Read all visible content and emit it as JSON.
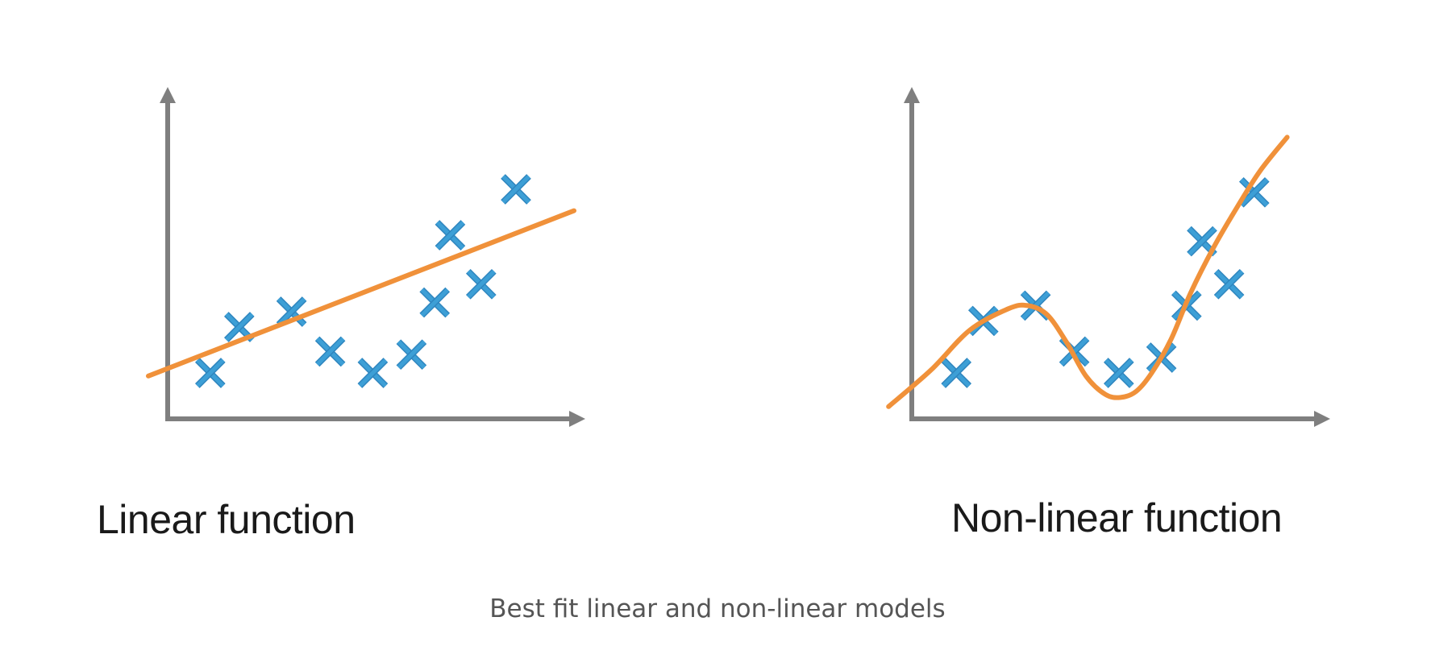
{
  "caption": "Best fit linear and non-linear models",
  "colors": {
    "axis": "#7f7f7f",
    "fit": "#f0913a",
    "marker": "#3d9fd6",
    "marker_dark": "#2f86bf"
  },
  "chart_data": [
    {
      "type": "scatter",
      "title": "Linear function",
      "xlim": [
        0,
        100
      ],
      "ylim": [
        0,
        100
      ],
      "grid": false,
      "points": [
        {
          "x": 11,
          "y": 15
        },
        {
          "x": 18.5,
          "y": 30
        },
        {
          "x": 32,
          "y": 35
        },
        {
          "x": 42,
          "y": 22
        },
        {
          "x": 53,
          "y": 15
        },
        {
          "x": 63,
          "y": 21
        },
        {
          "x": 69,
          "y": 38
        },
        {
          "x": 73,
          "y": 60
        },
        {
          "x": 81,
          "y": 44
        },
        {
          "x": 90,
          "y": 75
        }
      ],
      "fit": {
        "kind": "linear",
        "x": [
          -5,
          105
        ],
        "y": [
          14,
          68
        ]
      }
    },
    {
      "type": "scatter",
      "title": "Non-linear function",
      "xlim": [
        0,
        100
      ],
      "ylim": [
        0,
        100
      ],
      "grid": false,
      "points": [
        {
          "x": 11.5,
          "y": 15
        },
        {
          "x": 18.5,
          "y": 32
        },
        {
          "x": 32,
          "y": 37
        },
        {
          "x": 42,
          "y": 22
        },
        {
          "x": 53.5,
          "y": 15
        },
        {
          "x": 64.5,
          "y": 20
        },
        {
          "x": 71,
          "y": 37
        },
        {
          "x": 75,
          "y": 58
        },
        {
          "x": 82,
          "y": 44
        },
        {
          "x": 88.5,
          "y": 74
        }
      ],
      "fit": {
        "kind": "curve",
        "x": [
          -6,
          5,
          15,
          25,
          30,
          35,
          40,
          45,
          50,
          54,
          58,
          62,
          67,
          72,
          78,
          84,
          90,
          97
        ],
        "y": [
          4,
          16,
          29,
          36,
          37,
          34,
          25,
          14,
          8,
          7,
          9,
          15,
          26,
          41,
          56,
          69,
          81,
          92
        ]
      }
    }
  ]
}
